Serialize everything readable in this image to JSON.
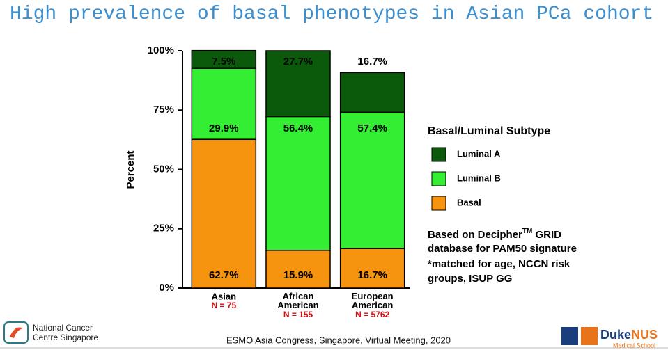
{
  "chart_data": {
    "type": "stacked_bar",
    "title": "High prevalence of basal phenotypes in Asian PCa cohort",
    "y_label": "Percent",
    "categories": [
      "Asian",
      "African American",
      "European American"
    ],
    "sample_sizes": [
      "N = 75",
      "N = 155",
      "N = 5762"
    ],
    "series": [
      {
        "name": "Basal",
        "color": "#f7940f",
        "values": [
          62.7,
          15.9,
          16.7
        ],
        "value_labels": [
          "62.7%",
          "15.9%",
          "16.7%"
        ]
      },
      {
        "name": "Luminal B",
        "color": "#33ee33",
        "values": [
          29.9,
          56.4,
          57.4
        ],
        "value_labels": [
          "29.9%",
          "56.4%",
          "57.4%"
        ]
      },
      {
        "name": "Luminal A",
        "color": "#0b5a0b",
        "values": [
          7.5,
          27.7,
          16.7
        ],
        "value_labels": [
          "7.5%",
          "27.7%",
          "16.7%"
        ]
      }
    ],
    "ylim": [
      0,
      100
    ],
    "yticks": [
      {
        "value": 0,
        "label": "0%"
      },
      {
        "value": 25,
        "label": "25%"
      },
      {
        "value": 50,
        "label": "50%"
      },
      {
        "value": 75,
        "label": "75%"
      },
      {
        "value": 100,
        "label": "100%"
      }
    ],
    "legend_title": "Basal/Luminal Subtype",
    "note": [
      "Based on Decipher",
      "TM",
      " GRID",
      "database for PAM50 signature",
      "*matched for age, NCCN risk",
      "groups, ISUP GG"
    ]
  },
  "footer": {
    "logo_left": [
      "National Cancer",
      "Centre Singapore"
    ],
    "meeting": "ESMO Asia Congress, Singapore, Virtual Meeting, 2020",
    "logo_right": [
      "Duke",
      "NUS",
      "Medical School"
    ]
  }
}
